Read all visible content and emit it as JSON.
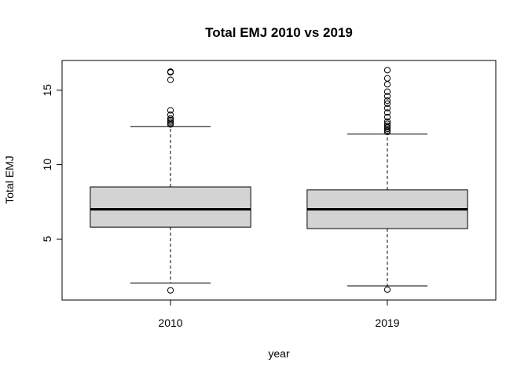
{
  "chart_data": {
    "type": "boxplot",
    "title": "Total EMJ 2010 vs 2019",
    "xlabel": "year",
    "ylabel": "Total EMJ",
    "categories": [
      "2010",
      "2019"
    ],
    "y_ticks": [
      5,
      10,
      15
    ],
    "ylim": [
      0.9,
      17.0
    ],
    "box_color": "#d3d3d3",
    "boxes": [
      {
        "name": "2010",
        "whisker_low": 2.05,
        "q1": 5.8,
        "median": 7.0,
        "q3": 8.5,
        "whisker_high": 12.55,
        "outliers": [
          1.55,
          12.7,
          12.8,
          12.9,
          13.0,
          13.1,
          13.35,
          13.65,
          15.7,
          16.2,
          16.25
        ]
      },
      {
        "name": "2019",
        "whisker_low": 1.85,
        "q1": 5.7,
        "median": 7.0,
        "q3": 8.3,
        "whisker_high": 12.05,
        "outliers": [
          1.6,
          12.2,
          12.3,
          12.4,
          12.5,
          12.6,
          12.75,
          12.9,
          13.2,
          13.5,
          13.8,
          14.1,
          14.3,
          14.6,
          14.9,
          15.4,
          15.8,
          16.35
        ]
      }
    ]
  }
}
